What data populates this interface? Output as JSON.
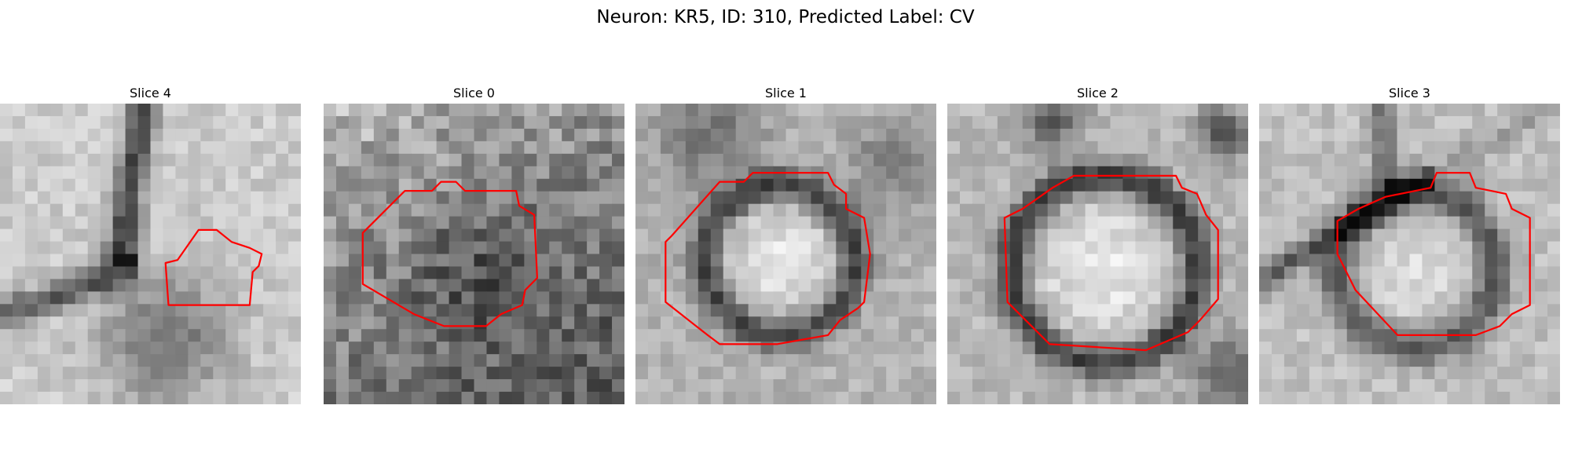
{
  "figure": {
    "title": "Neuron: KR5, ID: 310, Predicted Label: CV"
  },
  "colors": {
    "contour": "#ff0000",
    "background": "#ffffff"
  },
  "panels": [
    {
      "title": "Slice 0",
      "description": "noisy grayscale patch, faint dark blob, red contour"
    },
    {
      "title": "Slice 1",
      "description": "bright round vesicle with dark membrane ring, red contour"
    },
    {
      "title": "Slice 2",
      "description": "large bright round vesicle with dark ring, red contour"
    },
    {
      "title": "Slice 3",
      "description": "round vesicle with dark ring, red contour"
    },
    {
      "title": "Slice 4",
      "description": "bright region with dark curved membrane, small red contour"
    }
  ]
}
